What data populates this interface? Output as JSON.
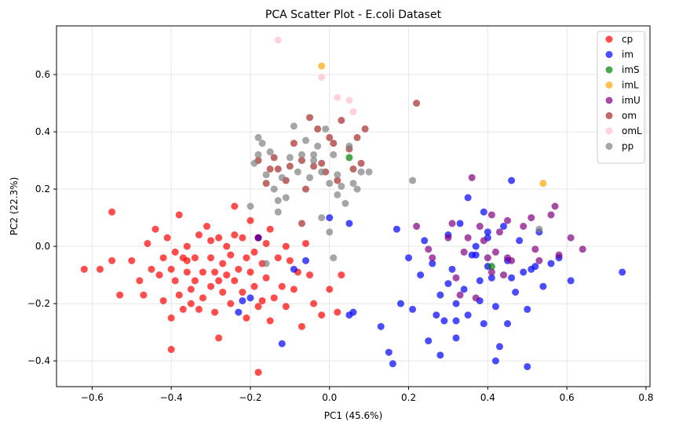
{
  "chart_data": {
    "type": "scatter",
    "title": "PCA Scatter Plot - E.coli Dataset",
    "xlabel": "PC1 (45.6%)",
    "ylabel": "PC2 (22.3%)",
    "xlim": [
      -0.69,
      0.81
    ],
    "ylim": [
      -0.49,
      0.77
    ],
    "xticks": [
      -0.6,
      -0.4,
      -0.2,
      0.0,
      0.2,
      0.4,
      0.6,
      0.8
    ],
    "xtick_labels": [
      "−0.6",
      "−0.4",
      "−0.2",
      "0.0",
      "0.2",
      "0.4",
      "0.6",
      "0.8"
    ],
    "yticks": [
      -0.4,
      -0.2,
      0.0,
      0.2,
      0.4,
      0.6
    ],
    "ytick_labels": [
      "−0.4",
      "−0.2",
      "0.0",
      "0.2",
      "0.4",
      "0.6"
    ],
    "grid": true,
    "legend_position": "top-right",
    "series": [
      {
        "name": "cp",
        "color": "#ff0000",
        "points": [
          [
            -0.62,
            -0.08
          ],
          [
            -0.58,
            -0.08
          ],
          [
            -0.55,
            0.12
          ],
          [
            -0.55,
            -0.05
          ],
          [
            -0.53,
            -0.17
          ],
          [
            -0.5,
            -0.05
          ],
          [
            -0.48,
            -0.12
          ],
          [
            -0.47,
            -0.17
          ],
          [
            -0.46,
            0.01
          ],
          [
            -0.45,
            -0.08
          ],
          [
            -0.44,
            0.06
          ],
          [
            -0.43,
            -0.1
          ],
          [
            -0.42,
            -0.04
          ],
          [
            -0.42,
            -0.19
          ],
          [
            -0.41,
            0.03
          ],
          [
            -0.4,
            -0.08
          ],
          [
            -0.4,
            -0.25
          ],
          [
            -0.4,
            -0.36
          ],
          [
            -0.39,
            -0.02
          ],
          [
            -0.39,
            -0.12
          ],
          [
            -0.38,
            -0.17
          ],
          [
            -0.38,
            0.11
          ],
          [
            -0.37,
            -0.04
          ],
          [
            -0.37,
            -0.22
          ],
          [
            -0.36,
            0.0
          ],
          [
            -0.36,
            -0.09
          ],
          [
            -0.35,
            -0.2
          ],
          [
            -0.35,
            -0.15
          ],
          [
            -0.34,
            -0.04
          ],
          [
            -0.34,
            -0.12
          ],
          [
            -0.33,
            -0.22
          ],
          [
            -0.33,
            0.04
          ],
          [
            -0.32,
            -0.09
          ],
          [
            -0.32,
            -0.18
          ],
          [
            -0.31,
            0.07
          ],
          [
            -0.3,
            -0.04
          ],
          [
            -0.3,
            -0.14
          ],
          [
            -0.29,
            -0.09
          ],
          [
            -0.29,
            -0.23
          ],
          [
            -0.28,
            -0.32
          ],
          [
            -0.28,
            0.03
          ],
          [
            -0.27,
            -0.06
          ],
          [
            -0.27,
            -0.16
          ],
          [
            -0.26,
            0.0
          ],
          [
            -0.26,
            -0.1
          ],
          [
            -0.25,
            -0.2
          ],
          [
            -0.25,
            -0.03
          ],
          [
            -0.24,
            0.14
          ],
          [
            -0.24,
            -0.12
          ],
          [
            -0.23,
            -0.08
          ],
          [
            -0.22,
            0.03
          ],
          [
            -0.22,
            -0.16
          ],
          [
            -0.21,
            -0.04
          ],
          [
            -0.21,
            -0.25
          ],
          [
            -0.2,
            -0.09
          ],
          [
            -0.2,
            0.09
          ],
          [
            -0.19,
            -0.02
          ],
          [
            -0.19,
            -0.14
          ],
          [
            -0.18,
            0.03
          ],
          [
            -0.18,
            -0.21
          ],
          [
            -0.17,
            -0.06
          ],
          [
            -0.17,
            -0.19
          ],
          [
            -0.16,
            0.01
          ],
          [
            -0.16,
            -0.11
          ],
          [
            -0.15,
            -0.26
          ],
          [
            -0.15,
            0.06
          ],
          [
            -0.14,
            -0.18
          ],
          [
            -0.13,
            -0.04
          ],
          [
            -0.12,
            -0.14
          ],
          [
            -0.11,
            0.0
          ],
          [
            -0.11,
            -0.21
          ],
          [
            -0.1,
            -0.05
          ],
          [
            -0.09,
            -0.15
          ],
          [
            -0.08,
            -0.09
          ],
          [
            -0.07,
            -0.28
          ],
          [
            -0.06,
            0.01
          ],
          [
            -0.05,
            -0.1
          ],
          [
            -0.04,
            -0.2
          ],
          [
            -0.02,
            -0.24
          ],
          [
            0.0,
            -0.15
          ],
          [
            0.02,
            -0.23
          ],
          [
            0.03,
            -0.1
          ],
          [
            -0.18,
            -0.44
          ],
          [
            -0.24,
            0.04
          ],
          [
            -0.3,
            0.02
          ],
          [
            -0.36,
            -0.05
          ],
          [
            -0.28,
            -0.12
          ]
        ]
      },
      {
        "name": "im",
        "color": "#0000ff",
        "points": [
          [
            -0.23,
            -0.23
          ],
          [
            -0.22,
            -0.19
          ],
          [
            -0.2,
            -0.18
          ],
          [
            -0.18,
            0.03
          ],
          [
            -0.12,
            -0.34
          ],
          [
            -0.09,
            -0.08
          ],
          [
            -0.06,
            -0.05
          ],
          [
            0.05,
            -0.24
          ],
          [
            0.06,
            -0.23
          ],
          [
            0.05,
            0.08
          ],
          [
            0.0,
            0.1
          ],
          [
            0.13,
            -0.28
          ],
          [
            0.15,
            -0.37
          ],
          [
            0.16,
            -0.41
          ],
          [
            0.17,
            0.06
          ],
          [
            0.18,
            -0.2
          ],
          [
            0.2,
            -0.04
          ],
          [
            0.21,
            -0.22
          ],
          [
            0.23,
            -0.1
          ],
          [
            0.24,
            0.02
          ],
          [
            0.25,
            -0.33
          ],
          [
            0.26,
            -0.06
          ],
          [
            0.27,
            -0.24
          ],
          [
            0.28,
            -0.38
          ],
          [
            0.29,
            -0.26
          ],
          [
            0.3,
            -0.13
          ],
          [
            0.3,
            0.04
          ],
          [
            0.31,
            -0.08
          ],
          [
            0.32,
            -0.2
          ],
          [
            0.32,
            -0.32
          ],
          [
            0.33,
            0.08
          ],
          [
            0.34,
            -0.15
          ],
          [
            0.35,
            -0.24
          ],
          [
            0.36,
            -0.03
          ],
          [
            0.37,
            0.0
          ],
          [
            0.38,
            -0.12
          ],
          [
            0.38,
            -0.19
          ],
          [
            0.39,
            -0.27
          ],
          [
            0.4,
            0.05
          ],
          [
            0.4,
            -0.07
          ],
          [
            0.41,
            -0.11
          ],
          [
            0.42,
            -0.21
          ],
          [
            0.42,
            -0.4
          ],
          [
            0.43,
            -0.35
          ],
          [
            0.44,
            0.07
          ],
          [
            0.45,
            -0.05
          ],
          [
            0.46,
            0.23
          ],
          [
            0.46,
            -0.11
          ],
          [
            0.47,
            -0.16
          ],
          [
            0.48,
            0.02
          ],
          [
            0.49,
            -0.09
          ],
          [
            0.5,
            -0.22
          ],
          [
            0.5,
            -0.42
          ],
          [
            0.51,
            -0.08
          ],
          [
            0.52,
            -0.07
          ],
          [
            0.53,
            0.05
          ],
          [
            0.54,
            -0.14
          ],
          [
            0.56,
            -0.06
          ],
          [
            0.58,
            -0.04
          ],
          [
            0.61,
            -0.12
          ],
          [
            0.74,
            -0.09
          ],
          [
            0.35,
            0.17
          ],
          [
            0.32,
            -0.26
          ],
          [
            0.28,
            -0.17
          ],
          [
            0.45,
            -0.27
          ],
          [
            0.4,
            0.03
          ],
          [
            0.39,
            0.12
          ],
          [
            0.37,
            -0.03
          ]
        ]
      },
      {
        "name": "imS",
        "color": "#008000",
        "points": [
          [
            0.05,
            0.31
          ],
          [
            0.41,
            -0.07
          ]
        ]
      },
      {
        "name": "imL",
        "color": "#ffa500",
        "points": [
          [
            -0.02,
            0.63
          ],
          [
            0.54,
            0.22
          ]
        ]
      },
      {
        "name": "imU",
        "color": "#800080",
        "points": [
          [
            -0.18,
            0.03
          ],
          [
            0.22,
            0.07
          ],
          [
            0.25,
            -0.01
          ],
          [
            0.26,
            -0.04
          ],
          [
            0.3,
            0.03
          ],
          [
            0.31,
            0.08
          ],
          [
            0.32,
            -0.11
          ],
          [
            0.33,
            -0.17
          ],
          [
            0.34,
            -0.02
          ],
          [
            0.35,
            0.03
          ],
          [
            0.36,
            0.24
          ],
          [
            0.37,
            -0.18
          ],
          [
            0.38,
            0.07
          ],
          [
            0.39,
            0.02
          ],
          [
            0.4,
            -0.04
          ],
          [
            0.41,
            0.11
          ],
          [
            0.42,
            -0.02
          ],
          [
            0.43,
            0.05
          ],
          [
            0.44,
            -0.1
          ],
          [
            0.45,
            0.09
          ],
          [
            0.45,
            -0.04
          ],
          [
            0.46,
            -0.05
          ],
          [
            0.49,
            0.07
          ],
          [
            0.51,
            0.1
          ],
          [
            0.52,
            -0.01
          ],
          [
            0.53,
            -0.05
          ],
          [
            0.56,
            0.11
          ],
          [
            0.57,
            0.14
          ],
          [
            0.58,
            -0.03
          ],
          [
            0.61,
            0.03
          ],
          [
            0.64,
            -0.01
          ],
          [
            0.41,
            -0.09
          ]
        ]
      },
      {
        "name": "om",
        "color": "#a52a2a",
        "points": [
          [
            -0.15,
            0.27
          ],
          [
            -0.14,
            0.31
          ],
          [
            -0.13,
            0.27
          ],
          [
            -0.11,
            0.23
          ],
          [
            -0.1,
            0.28
          ],
          [
            -0.09,
            0.36
          ],
          [
            -0.07,
            0.3
          ],
          [
            -0.06,
            0.2
          ],
          [
            -0.05,
            0.45
          ],
          [
            -0.04,
            0.28
          ],
          [
            -0.03,
            0.41
          ],
          [
            -0.02,
            0.29
          ],
          [
            -0.01,
            0.26
          ],
          [
            0.0,
            0.38
          ],
          [
            0.01,
            0.36
          ],
          [
            0.02,
            0.23
          ],
          [
            0.03,
            0.44
          ],
          [
            0.05,
            0.34
          ],
          [
            0.06,
            0.27
          ],
          [
            0.07,
            0.38
          ],
          [
            0.08,
            0.29
          ],
          [
            0.09,
            0.41
          ],
          [
            0.22,
            0.5
          ],
          [
            -0.18,
            0.3
          ],
          [
            -0.16,
            0.22
          ],
          [
            -0.07,
            0.08
          ]
        ]
      },
      {
        "name": "omL",
        "color": "#ffc0cb",
        "points": [
          [
            -0.13,
            0.72
          ],
          [
            -0.02,
            0.59
          ],
          [
            0.02,
            0.52
          ],
          [
            0.05,
            0.51
          ],
          [
            0.06,
            0.47
          ]
        ]
      },
      {
        "name": "pp",
        "color": "#808080",
        "points": [
          [
            -0.2,
            0.14
          ],
          [
            -0.19,
            0.29
          ],
          [
            -0.18,
            0.32
          ],
          [
            -0.17,
            0.36
          ],
          [
            -0.16,
            0.25
          ],
          [
            -0.15,
            0.33
          ],
          [
            -0.14,
            0.2
          ],
          [
            -0.13,
            0.16
          ],
          [
            -0.12,
            0.24
          ],
          [
            -0.11,
            0.17
          ],
          [
            -0.1,
            0.31
          ],
          [
            -0.09,
            0.42
          ],
          [
            -0.08,
            0.26
          ],
          [
            -0.07,
            0.32
          ],
          [
            -0.06,
            0.37
          ],
          [
            -0.05,
            0.24
          ],
          [
            -0.04,
            0.3
          ],
          [
            -0.03,
            0.35
          ],
          [
            -0.02,
            0.26
          ],
          [
            -0.01,
            0.41
          ],
          [
            0.0,
            0.22
          ],
          [
            0.01,
            0.32
          ],
          [
            0.02,
            0.18
          ],
          [
            0.03,
            0.21
          ],
          [
            0.04,
            0.15
          ],
          [
            0.05,
            0.35
          ],
          [
            0.06,
            0.22
          ],
          [
            0.07,
            0.2
          ],
          [
            0.08,
            0.26
          ],
          [
            0.1,
            0.26
          ],
          [
            0.21,
            0.23
          ],
          [
            0.02,
            0.25
          ],
          [
            -0.13,
            0.12
          ],
          [
            -0.02,
            0.1
          ],
          [
            0.01,
            -0.04
          ],
          [
            0.0,
            0.05
          ],
          [
            -0.16,
            -0.06
          ],
          [
            -0.18,
            0.38
          ],
          [
            0.53,
            0.06
          ],
          [
            -0.04,
            0.32
          ]
        ]
      }
    ]
  }
}
